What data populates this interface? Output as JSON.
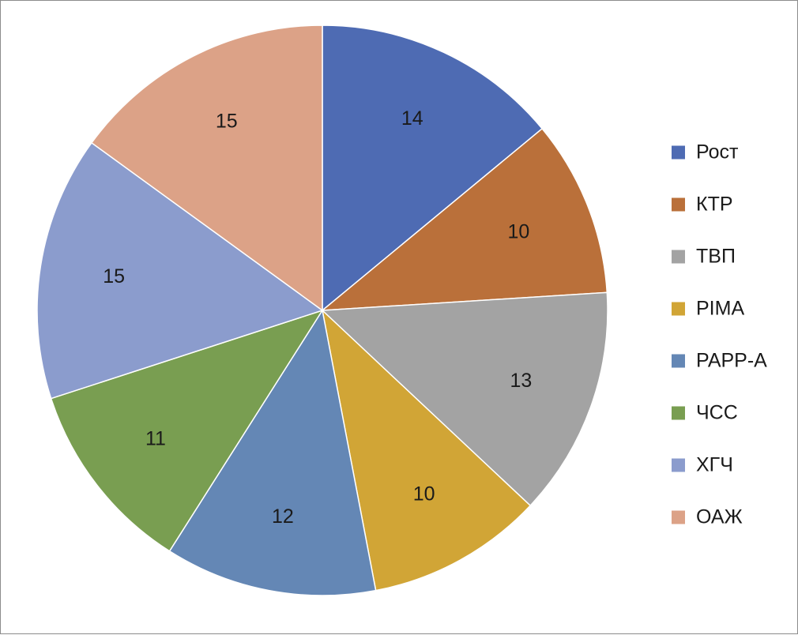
{
  "chart_data": {
    "type": "pie",
    "start_angle_deg": 0,
    "direction": "clockwise",
    "slices": [
      {
        "label": "Рост",
        "value": 14,
        "color": "#4e6bb3"
      },
      {
        "label": "КТР",
        "value": 10,
        "color": "#ba703a"
      },
      {
        "label": "ТВП",
        "value": 13,
        "color": "#a3a3a3"
      },
      {
        "label": "PIMA",
        "value": 10,
        "color": "#d1a536"
      },
      {
        "label": "PAPP-A",
        "value": 12,
        "color": "#6487b5"
      },
      {
        "label": "ЧСС",
        "value": 11,
        "color": "#799e51"
      },
      {
        "label": "ХГЧ",
        "value": 15,
        "color": "#8b9ccd"
      },
      {
        "label": "ОАЖ",
        "value": 15,
        "color": "#dca287"
      }
    ],
    "legend_position": "right"
  }
}
